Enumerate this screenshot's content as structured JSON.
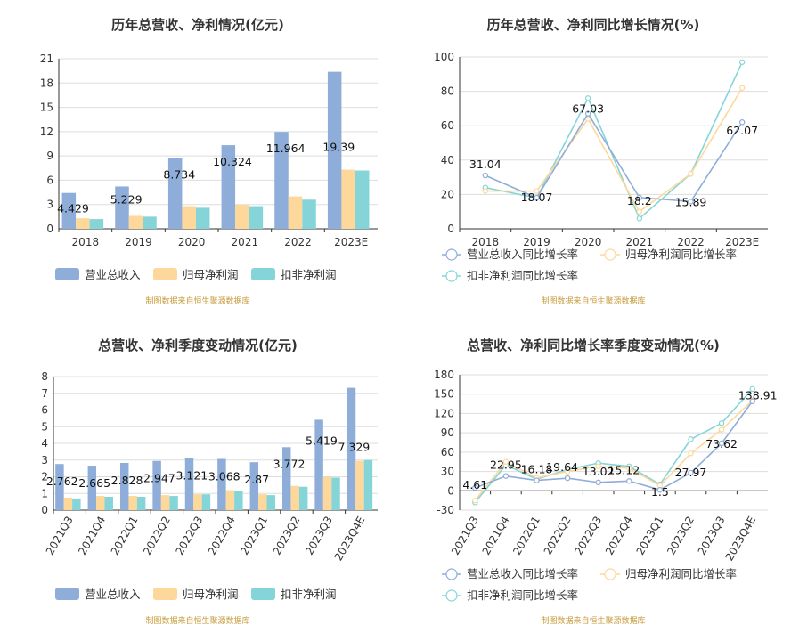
{
  "colors": {
    "revenue": "#8eadd9",
    "net_profit": "#fdd89a",
    "deducted_profit": "#85d5d8",
    "line_revenue": "#8eadd9",
    "line_net": "#fdd89a",
    "line_deducted": "#85d5d8"
  },
  "source_text": "制图数据来自恒生聚源数据库",
  "chart_data": [
    {
      "type": "bar",
      "title": "历年总营收、净利情况(亿元)",
      "unit": "(亿元)",
      "categories": [
        "2018",
        "2019",
        "2020",
        "2021",
        "2022",
        "2023E"
      ],
      "ylim": [
        0,
        21
      ],
      "yticks": [
        "0",
        "3",
        "6",
        "9",
        "12",
        "15",
        "18",
        "21"
      ],
      "series": [
        {
          "name": "营业总收入",
          "color_key": "revenue",
          "values": [
            4.429,
            5.229,
            8.734,
            10.324,
            11.964,
            19.39
          ]
        },
        {
          "name": "归母净利润",
          "color_key": "net_profit",
          "values": [
            1.3,
            1.6,
            2.8,
            3.0,
            4.0,
            7.3
          ]
        },
        {
          "name": "扣非净利润",
          "color_key": "deducted_profit",
          "values": [
            1.2,
            1.5,
            2.6,
            2.8,
            3.6,
            7.2
          ]
        }
      ],
      "data_labels": [
        "4.429",
        "5.229",
        "8.734",
        "10.324",
        "11.964",
        "19.39"
      ],
      "legend_position": "bottom"
    },
    {
      "type": "line",
      "title": "历年总营收、净利同比增长情况(%)",
      "unit": "%",
      "categories": [
        "2018",
        "2019",
        "2020",
        "2021",
        "2022",
        "2023E"
      ],
      "ylim": [
        0,
        100
      ],
      "yticks": [
        "0",
        "20",
        "40",
        "60",
        "80",
        "100"
      ],
      "series": [
        {
          "name": "营业总收入同比增长率",
          "color_key": "line_revenue",
          "values": [
            31.04,
            18.07,
            67.03,
            18.2,
            15.89,
            62.07
          ]
        },
        {
          "name": "归母净利润同比增长率",
          "color_key": "line_net",
          "values": [
            22,
            22,
            64,
            10,
            32,
            82
          ]
        },
        {
          "name": "扣非净利润同比增长率",
          "color_key": "line_deducted",
          "values": [
            24,
            18,
            76,
            6,
            32,
            97
          ]
        }
      ],
      "data_labels": [
        "31.04",
        "18.07",
        "67.03",
        "18.2",
        "15.89",
        "62.07"
      ],
      "legend_position": "bottom"
    },
    {
      "type": "bar",
      "title": "总营收、净利季度变动情况(亿元)",
      "unit": "(亿元)",
      "categories": [
        "2021Q3",
        "2021Q4",
        "2022Q1",
        "2022Q2",
        "2022Q3",
        "2022Q4",
        "2023Q1",
        "2023Q2",
        "2023Q3",
        "2023Q4E"
      ],
      "ylim": [
        0,
        8
      ],
      "yticks": [
        "0",
        "1",
        "2",
        "3",
        "4",
        "5",
        "6",
        "7",
        "8"
      ],
      "series": [
        {
          "name": "营业总收入",
          "color_key": "revenue",
          "values": [
            2.762,
            2.665,
            2.828,
            2.947,
            3.121,
            3.068,
            2.87,
            3.772,
            5.419,
            7.329
          ]
        },
        {
          "name": "归母净利润",
          "color_key": "net_profit",
          "values": [
            0.75,
            0.85,
            0.85,
            0.9,
            0.95,
            1.2,
            0.95,
            1.45,
            2.0,
            2.95
          ]
        },
        {
          "name": "扣非净利润",
          "color_key": "deducted_profit",
          "values": [
            0.7,
            0.8,
            0.8,
            0.85,
            0.95,
            1.15,
            0.9,
            1.4,
            1.95,
            3.0
          ]
        }
      ],
      "data_labels": [
        "2.762",
        "2.665",
        "2.828",
        "2.947",
        "3.121",
        "3.068",
        "2.87",
        "3.772",
        "5.419",
        "7.329"
      ],
      "legend_position": "bottom"
    },
    {
      "type": "line",
      "title": "总营收、净利同比增长率季度变动情况(%)",
      "unit": "%",
      "categories": [
        "2021Q3",
        "2021Q4",
        "2022Q1",
        "2022Q2",
        "2022Q3",
        "2022Q4",
        "2023Q1",
        "2023Q2",
        "2023Q3",
        "2023Q4E"
      ],
      "ylim": [
        -30,
        180
      ],
      "yticks": [
        "-30",
        "0",
        "30",
        "60",
        "90",
        "120",
        "150",
        "180"
      ],
      "series": [
        {
          "name": "营业总收入同比增长率",
          "color_key": "line_revenue",
          "values": [
            4.61,
            22.95,
            16.18,
            19.64,
            13.02,
            15.12,
            1.5,
            27.97,
            73.62,
            138.91
          ]
        },
        {
          "name": "归母净利润同比增长率",
          "color_key": "line_net",
          "values": [
            -15,
            45,
            20,
            30,
            38,
            35,
            8,
            58,
            95,
            140
          ]
        },
        {
          "name": "扣非净利润同比增长率",
          "color_key": "line_deducted",
          "values": [
            -18,
            40,
            18,
            33,
            43,
            38,
            10,
            80,
            105,
            158
          ]
        }
      ],
      "data_labels": [
        "4.61",
        "22.95",
        "16.18",
        "19.64",
        "13.02",
        "15.12",
        "1.5",
        "27.97",
        "73.62",
        "138.91"
      ],
      "legend_position": "bottom"
    }
  ]
}
